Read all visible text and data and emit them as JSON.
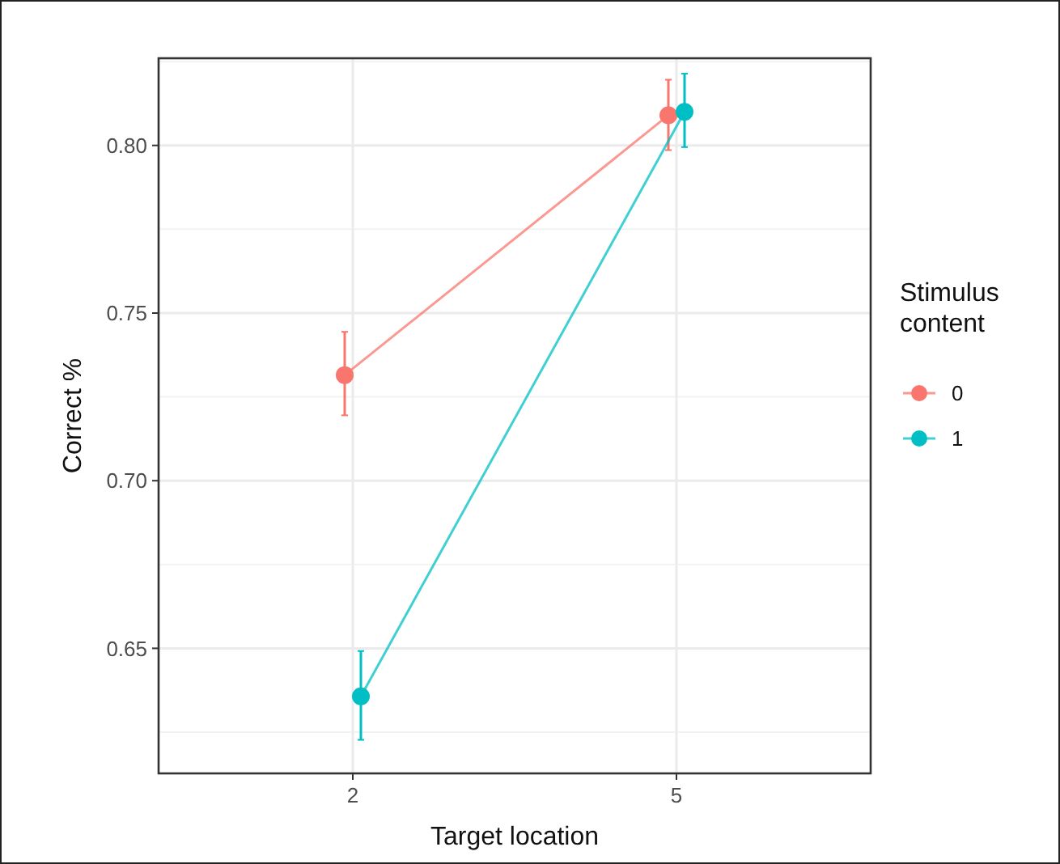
{
  "chart_data": {
    "type": "line",
    "xlabel": "Target location",
    "ylabel": "Correct %",
    "legend_title": "Stimulus content",
    "categories": [
      "2",
      "5"
    ],
    "series": [
      {
        "name": "0",
        "color": "#f8766d",
        "values": [
          0.7315,
          0.809
        ],
        "errors": [
          [
            0.7195,
            0.7444
          ],
          [
            0.7986,
            0.8196
          ]
        ]
      },
      {
        "name": "1",
        "color": "#00bfc4",
        "values": [
          0.6357,
          0.81
        ],
        "errors": [
          [
            0.6227,
            0.6492
          ],
          [
            0.7995,
            0.8214
          ]
        ]
      }
    ],
    "ylim": [
      0.6127,
      0.826
    ],
    "yticks": [
      {
        "value": 0.65,
        "label": "0.65"
      },
      {
        "value": 0.7,
        "label": "0.70"
      },
      {
        "value": 0.75,
        "label": "0.75"
      },
      {
        "value": 0.8,
        "label": "0.80"
      }
    ],
    "grid": true,
    "legend": "right",
    "marker": "circle",
    "line_style": "solid"
  }
}
